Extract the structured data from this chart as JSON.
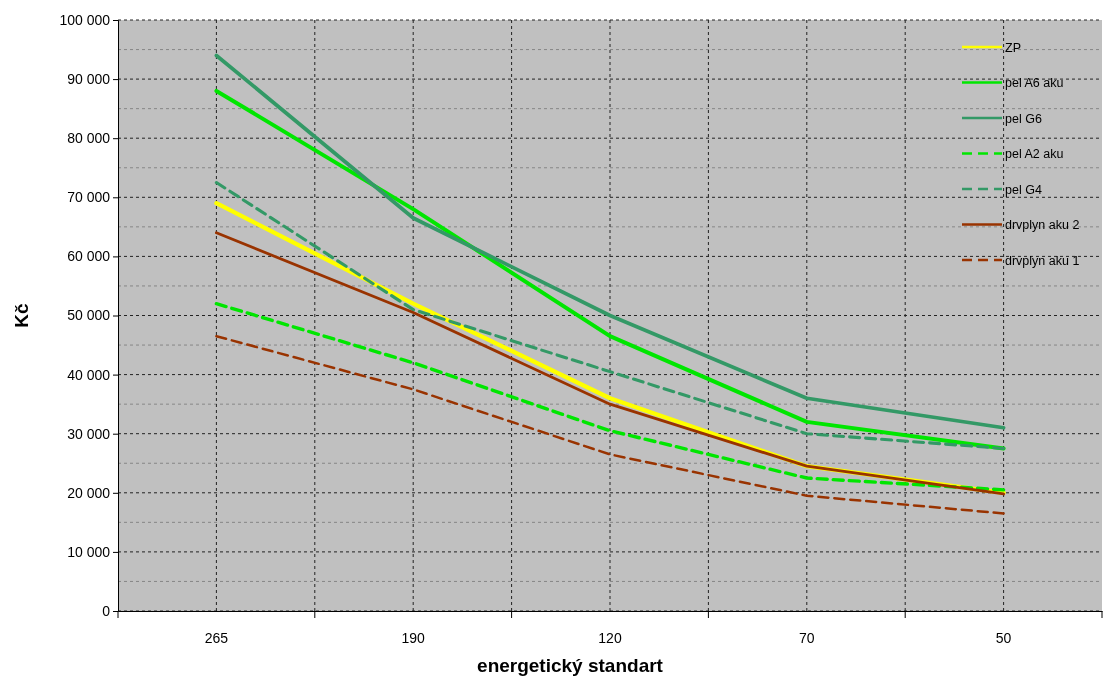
{
  "chart_data": {
    "type": "line",
    "xlabel": "energetický standart",
    "ylabel": "Kč",
    "categories": [
      "265",
      "190",
      "120",
      "70",
      "50"
    ],
    "ylim": [
      0,
      100000
    ],
    "yticks": [
      {
        "value": 0,
        "label": "0"
      },
      {
        "value": 10000,
        "label": "10 000"
      },
      {
        "value": 20000,
        "label": "20 000"
      },
      {
        "value": 30000,
        "label": "30 000"
      },
      {
        "value": 40000,
        "label": "40 000"
      },
      {
        "value": 50000,
        "label": "50 000"
      },
      {
        "value": 60000,
        "label": "60 000"
      },
      {
        "value": 70000,
        "label": "70 000"
      },
      {
        "value": 80000,
        "label": "80 000"
      },
      {
        "value": 90000,
        "label": "90 000"
      },
      {
        "value": 100000,
        "label": "100 000"
      }
    ],
    "grid": true,
    "legend": "top right",
    "marker": "none",
    "series": [
      {
        "name": "ZP",
        "color": "#ffff00",
        "line_style": "solid",
        "values": [
          69000,
          52000,
          36000,
          24500,
          20000
        ]
      },
      {
        "name": "pel A6 aku",
        "color": "#00e600",
        "line_style": "solid",
        "values": [
          88000,
          68000,
          46500,
          32000,
          27500
        ]
      },
      {
        "name": "pel G6",
        "color": "#339966",
        "line_style": "solid",
        "values": [
          94000,
          66500,
          50000,
          36000,
          31000
        ]
      },
      {
        "name": "pel A2 aku",
        "color": "#00e600",
        "line_style": "dashed",
        "values": [
          52000,
          42000,
          30500,
          22500,
          20500
        ]
      },
      {
        "name": "pel G4",
        "color": "#339966",
        "line_style": "dashed",
        "values": [
          72500,
          51000,
          40500,
          30000,
          27500
        ]
      },
      {
        "name": "drvplyn aku 2",
        "color": "#993300",
        "line_style": "solid",
        "values": [
          64000,
          50500,
          35000,
          24500,
          19800
        ]
      },
      {
        "name": "drvplyn aku 1",
        "color": "#993300",
        "line_style": "dashed",
        "values": [
          46500,
          37500,
          26500,
          19500,
          16500
        ]
      }
    ]
  }
}
